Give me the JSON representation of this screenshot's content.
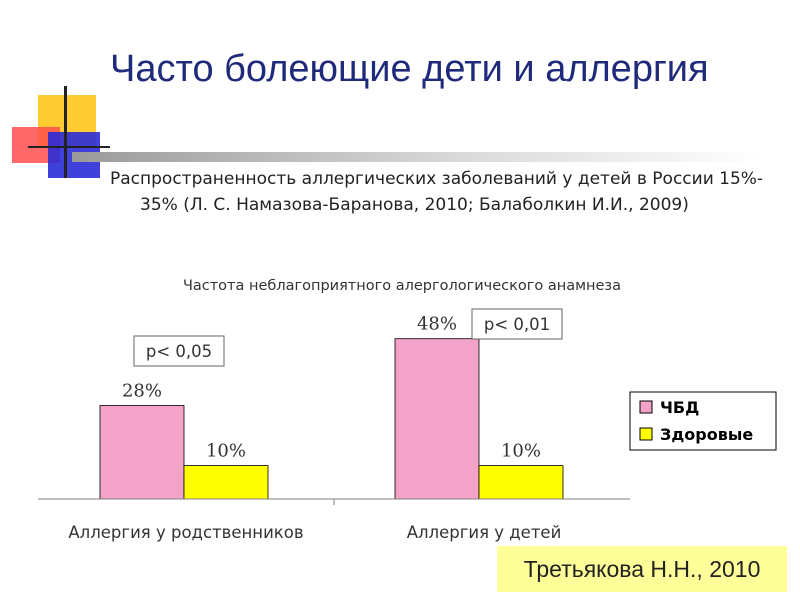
{
  "slide": {
    "title": "Часто болеющие дети и аллергия",
    "bullet": "Распространенность аллергических заболеваний у детей в России 15%- 35% (Л. С. Намазова-Баранова, 2010; Балаболкин И.И., 2009)",
    "source": "Третьякова Н.Н., 2010"
  },
  "colors": {
    "title": "#1f2a7a",
    "chbd": "#f4a3c8",
    "healthy": "#ffff00"
  },
  "chart_data": {
    "type": "bar",
    "title": "Частота неблагоприятного алергологического анамнеза",
    "categories": [
      "Аллергия у родственников",
      "Аллергия у детей"
    ],
    "series": [
      {
        "name": "ЧБД",
        "values": [
          28,
          48
        ],
        "labels": [
          "28%",
          "48%"
        ],
        "color": "#f4a3c8"
      },
      {
        "name": "Здоровые",
        "values": [
          10,
          10
        ],
        "labels": [
          "10%",
          "10%"
        ],
        "color": "#ffff00"
      }
    ],
    "annotations": [
      "p< 0,05",
      "p< 0,01"
    ],
    "unit": "%",
    "ylim": [
      0,
      55
    ],
    "grid": false,
    "legend": "right"
  }
}
